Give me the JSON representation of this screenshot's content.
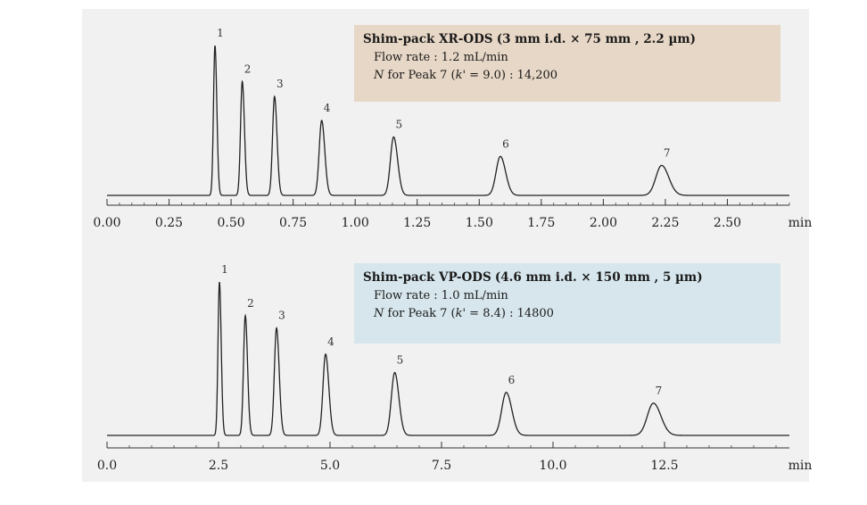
{
  "chart_data": [
    {
      "type": "line",
      "title": "Shim-pack XR-ODS",
      "column_spec": "(3 mm i.d. × 75 mm , 2.2 µm)",
      "flow_rate_text": "Flow rate : 1.2 mL/min",
      "n_prefix": "N",
      "n_text": " for Peak 7 (",
      "k_symbol": "k'",
      "k_value_text": " = 9.0) : 14,200",
      "xlabel": "min",
      "xlim": [
        0.0,
        2.75
      ],
      "ticks": [
        0.0,
        0.25,
        0.5,
        0.75,
        1.0,
        1.25,
        1.5,
        1.75,
        2.0,
        2.25,
        2.5
      ],
      "tick_labels": [
        "0.00",
        "0.25",
        "0.50",
        "0.75",
        "1.00",
        "1.25",
        "1.50",
        "1.75",
        "2.00",
        "2.25",
        "2.50"
      ],
      "minor_step": 0.05,
      "peaks": [
        {
          "label": "1",
          "rt": 0.435,
          "height": 1.0,
          "width": 0.006
        },
        {
          "label": "2",
          "rt": 0.545,
          "height": 0.76,
          "width": 0.007
        },
        {
          "label": "3",
          "rt": 0.675,
          "height": 0.66,
          "width": 0.008
        },
        {
          "label": "4",
          "rt": 0.865,
          "height": 0.5,
          "width": 0.01
        },
        {
          "label": "5",
          "rt": 1.155,
          "height": 0.39,
          "width": 0.013
        },
        {
          "label": "6",
          "rt": 1.585,
          "height": 0.26,
          "width": 0.017
        },
        {
          "label": "7",
          "rt": 2.235,
          "height": 0.2,
          "width": 0.023
        }
      ]
    },
    {
      "type": "line",
      "title": "Shim-pack VP-ODS",
      "column_spec": "(4.6 mm i.d. × 150 mm , 5 µm)",
      "flow_rate_text": "Flow rate : 1.0 mL/min",
      "n_prefix": "N",
      "n_text": " for Peak 7 (",
      "k_symbol": "k'",
      "k_value_text": " = 8.4) : 14800",
      "xlabel": "min",
      "xlim": [
        0.0,
        15.3
      ],
      "ticks": [
        0.0,
        2.5,
        5.0,
        7.5,
        10.0,
        12.5
      ],
      "tick_labels": [
        "0.0",
        "2.5",
        "5.0",
        "7.5",
        "10.0",
        "12.5"
      ],
      "minor_step": 0.5,
      "peaks": [
        {
          "label": "1",
          "rt": 2.52,
          "height": 1.0,
          "width": 0.032
        },
        {
          "label": "2",
          "rt": 3.1,
          "height": 0.78,
          "width": 0.04
        },
        {
          "label": "3",
          "rt": 3.8,
          "height": 0.7,
          "width": 0.048
        },
        {
          "label": "4",
          "rt": 4.9,
          "height": 0.53,
          "width": 0.058
        },
        {
          "label": "5",
          "rt": 6.45,
          "height": 0.41,
          "width": 0.075
        },
        {
          "label": "6",
          "rt": 8.95,
          "height": 0.28,
          "width": 0.1
        },
        {
          "label": "7",
          "rt": 12.25,
          "height": 0.21,
          "width": 0.135
        }
      ]
    }
  ]
}
